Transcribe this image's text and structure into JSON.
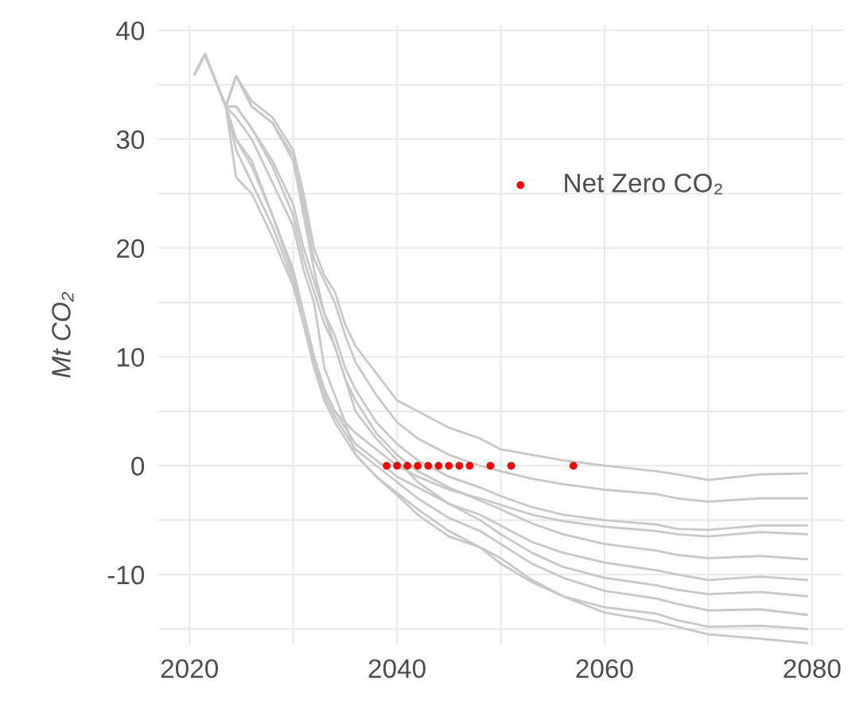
{
  "chart_data": {
    "type": "line",
    "ylabel": "Mt CO₂",
    "x": [
      2020.5,
      2021.5,
      2023.5,
      2024.5,
      2026,
      2028,
      2030,
      2031,
      2032,
      2033,
      2034,
      2035,
      2036,
      2038,
      2040,
      2042,
      2045,
      2048,
      2050,
      2053,
      2056,
      2060,
      2065,
      2067,
      2070,
      2075,
      2079.5
    ],
    "series": [
      {
        "color": "#c8c8c8",
        "values": [
          36,
          37.8,
          33,
          35.8,
          33.5,
          32,
          29,
          25,
          20,
          17.5,
          16,
          13,
          11,
          8.5,
          6,
          5,
          3.5,
          2.5,
          1.5,
          1,
          0.5,
          0,
          -0.5,
          -0.8,
          -1.3,
          -0.8,
          -0.7
        ]
      },
      {
        "color": "#c8c8c8",
        "values": [
          36,
          37.8,
          33,
          35.8,
          33,
          31.5,
          28.5,
          24,
          19,
          17,
          15,
          12,
          9.5,
          6.5,
          4,
          2.5,
          1,
          0,
          -0.5,
          -1.2,
          -1.7,
          -2.2,
          -2.6,
          -3,
          -3.3,
          -3,
          -3
        ]
      },
      {
        "color": "#c8c8c8",
        "values": [
          36,
          37.8,
          33,
          33,
          31,
          28,
          24,
          20,
          17,
          14,
          12,
          9,
          7,
          4,
          2,
          0.5,
          -1,
          -2,
          -2.8,
          -3.8,
          -4.5,
          -5,
          -5.4,
          -5.8,
          -5.9,
          -5.5,
          -5.5
        ]
      },
      {
        "color": "#c8c8c8",
        "values": [
          36,
          37.8,
          33,
          30,
          28,
          23,
          18,
          14,
          10,
          7,
          5,
          4,
          3,
          1.5,
          0,
          -1,
          -2.2,
          -3,
          -3.6,
          -4.5,
          -5.1,
          -5.6,
          -6,
          -6.3,
          -6.5,
          -6.1,
          -6.3
        ]
      },
      {
        "color": "#c8c8c8",
        "values": [
          36,
          37.8,
          33,
          33,
          31,
          27.5,
          23,
          19,
          16,
          13,
          11,
          8,
          6,
          3,
          1,
          -0.5,
          -2,
          -3.2,
          -4,
          -5.3,
          -6.3,
          -7.2,
          -7.8,
          -8.2,
          -8.5,
          -8.3,
          -8.6
        ]
      },
      {
        "color": "#c8c8c8",
        "values": [
          36,
          37.8,
          33,
          30,
          27.5,
          23,
          17.5,
          14,
          10,
          7,
          5,
          3.5,
          2,
          0.5,
          -1,
          -2,
          -3.5,
          -4.5,
          -5.5,
          -7,
          -8,
          -8.9,
          -9.6,
          -10,
          -10.5,
          -10.2,
          -10.5
        ]
      },
      {
        "color": "#c8c8c8",
        "values": [
          36,
          37.8,
          33,
          35.8,
          33,
          31.5,
          28,
          23,
          18,
          14,
          11,
          8,
          5,
          2.5,
          0.5,
          -1.5,
          -3.5,
          -5,
          -6.3,
          -8,
          -9.3,
          -10.3,
          -11,
          -11.4,
          -11.8,
          -11.6,
          -12
        ]
      },
      {
        "color": "#c8c8c8",
        "values": [
          36,
          37.8,
          33,
          29,
          26,
          22,
          17,
          13,
          9.5,
          6.5,
          4.5,
          3,
          1.5,
          0,
          -1.5,
          -3,
          -4.8,
          -6,
          -7.2,
          -9,
          -10.3,
          -11.5,
          -12.2,
          -12.7,
          -13.3,
          -13.2,
          -13.7
        ]
      },
      {
        "color": "#c8c8c8",
        "values": [
          36,
          37.8,
          33,
          32,
          30,
          26,
          22,
          18,
          15,
          9,
          6.5,
          4,
          1,
          -1,
          -2.7,
          -4.5,
          -6.5,
          -7.5,
          -9,
          -10.7,
          -12,
          -13,
          -13.6,
          -14.2,
          -14.8,
          -14.7,
          -15
        ]
      },
      {
        "color": "#c8c8c8",
        "values": [
          36,
          37.8,
          33,
          26.5,
          25,
          21,
          16.5,
          13,
          9,
          6,
          4,
          2.5,
          1,
          -1,
          -2.5,
          -4,
          -6,
          -7.5,
          -8.5,
          -10.5,
          -12,
          -13.5,
          -14.3,
          -14.8,
          -15.5,
          -15.9,
          -16.3
        ]
      },
      {
        "type": "scatter",
        "name": "Net Zero CO₂",
        "color": "#ff0000",
        "x": [
          2039,
          2040,
          2041,
          2042,
          2043,
          2044,
          2045,
          2046,
          2047,
          2049,
          2051,
          2057
        ],
        "values": [
          0,
          0,
          0,
          0,
          0,
          0,
          0,
          0,
          0,
          0,
          0,
          0
        ]
      }
    ],
    "xlim": [
      2017,
      2083
    ],
    "ylim": [
      -16.5,
      40.5
    ],
    "xticks": [
      2020,
      {
        "value": 2030,
        "label": null
      },
      2040,
      {
        "value": 2050,
        "label": null
      },
      2060,
      {
        "value": 2070,
        "label": null
      },
      2080
    ],
    "yticks": [
      {
        "value": -15,
        "label": null
      },
      -10,
      {
        "value": -5,
        "label": null
      },
      0,
      {
        "value": 5,
        "label": null
      },
      10,
      {
        "value": 15,
        "label": null
      },
      20,
      {
        "value": 25,
        "label": null
      },
      30,
      {
        "value": 35,
        "label": null
      },
      40
    ],
    "grid": true,
    "legend": "top right"
  }
}
